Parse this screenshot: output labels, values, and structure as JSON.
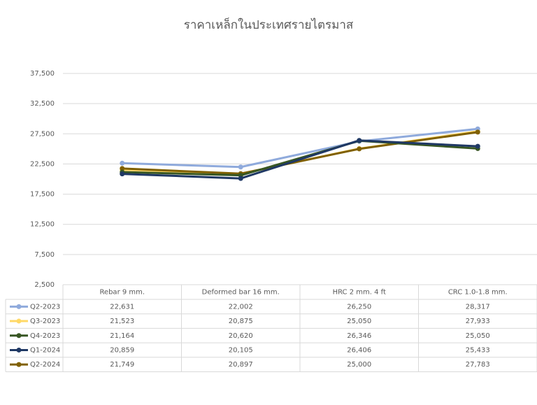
{
  "chart_data": {
    "type": "line",
    "title": "ราคาเหล็กในประเทศรายไตรมาส",
    "categories": [
      "Rebar 9 mm.",
      "Deformed bar 16 mm.",
      "HRC 2 mm. 4 ft",
      "CRC 1.0-1.8 mm."
    ],
    "series": [
      {
        "name": "Q2-2023",
        "color": "#8faadc",
        "values": [
          22631,
          22002,
          26250,
          28317
        ],
        "value_labels": [
          "22,631",
          "22,002",
          "26,250",
          "28,317"
        ]
      },
      {
        "name": "Q3-2023",
        "color": "#ffd966",
        "values": [
          21523,
          20875,
          25050,
          27933
        ],
        "value_labels": [
          "21,523",
          "20,875",
          "25,050",
          "27,933"
        ]
      },
      {
        "name": "Q4-2023",
        "color": "#375623",
        "values": [
          21164,
          20620,
          26346,
          25050
        ],
        "value_labels": [
          "21,164",
          "20,620",
          "26,346",
          "25,050"
        ]
      },
      {
        "name": "Q1-2024",
        "color": "#1f3864",
        "values": [
          20859,
          20105,
          26406,
          25433
        ],
        "value_labels": [
          "20,859",
          "20,105",
          "26,406",
          "25,433"
        ]
      },
      {
        "name": "Q2-2024",
        "color": "#806000",
        "values": [
          21749,
          20897,
          25000,
          27783
        ],
        "value_labels": [
          "21,749",
          "20,897",
          "25,000",
          "27,783"
        ]
      }
    ],
    "ylim": [
      2500,
      37500
    ],
    "yticks": [
      {
        "value": 2500,
        "label": "2,500"
      },
      {
        "value": 7500,
        "label": "7,500"
      },
      {
        "value": 12500,
        "label": "12,500"
      },
      {
        "value": 17500,
        "label": "17,500"
      },
      {
        "value": 22500,
        "label": "22,500"
      },
      {
        "value": 27500,
        "label": "27,500"
      },
      {
        "value": 32500,
        "label": "32,500"
      },
      {
        "value": 37500,
        "label": "37,500"
      }
    ],
    "grid": true
  }
}
